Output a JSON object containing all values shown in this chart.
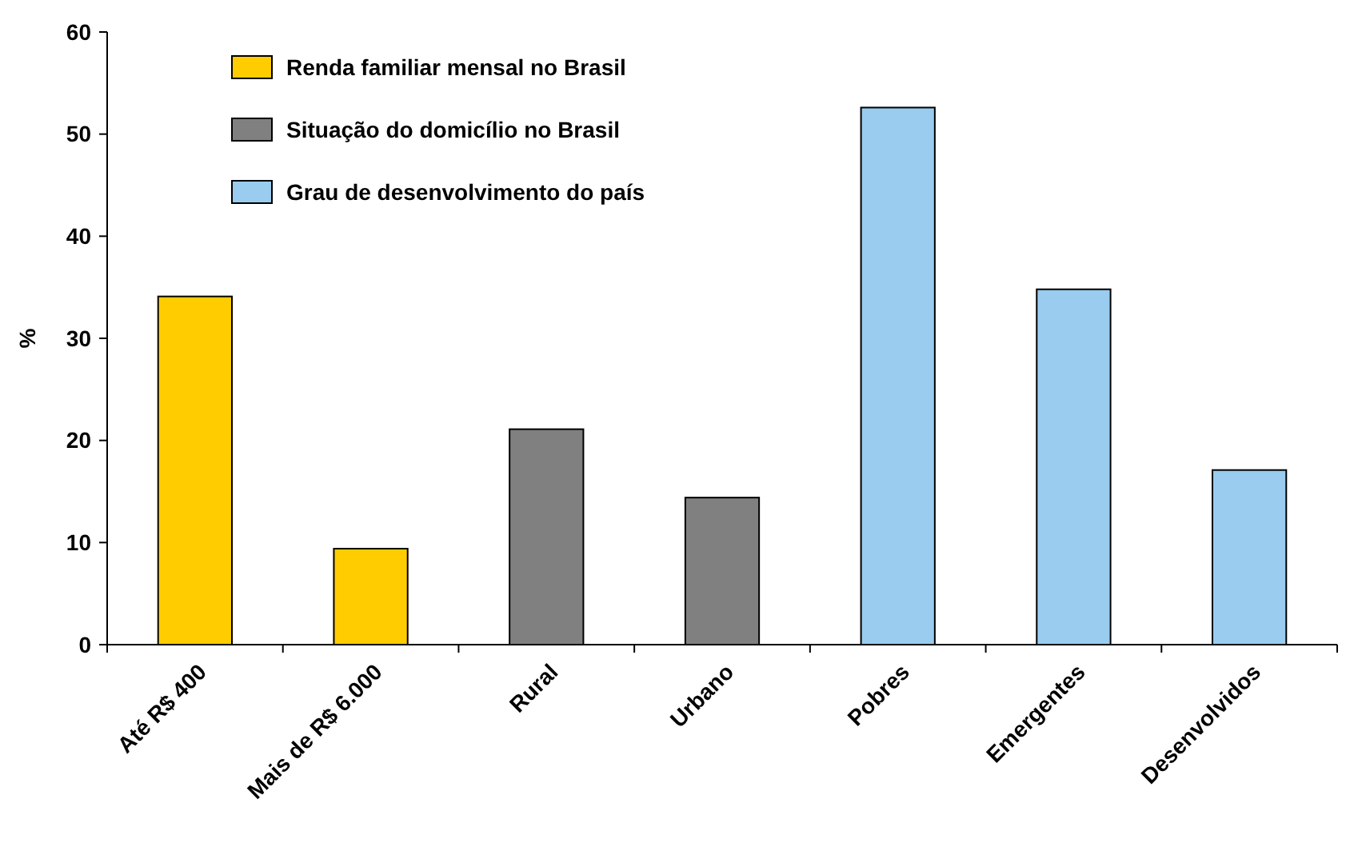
{
  "chart_data": {
    "type": "bar",
    "ylabel": "%",
    "categories": [
      "Até R$ 400",
      "Mais de R$ 6.000",
      "Rural",
      "Urbano",
      "Pobres",
      "Emergentes",
      "Desenvolvidos"
    ],
    "series": [
      {
        "name": "Renda familiar mensal no Brasil",
        "color": "#ffcc00",
        "values": [
          34.1,
          9.4,
          null,
          null,
          null,
          null,
          null
        ]
      },
      {
        "name": "Situação do domicílio no Brasil",
        "color": "#808080",
        "values": [
          null,
          null,
          21.1,
          14.4,
          null,
          null,
          null
        ]
      },
      {
        "name": "Grau de desenvolvimento do país",
        "color": "#99ccee",
        "values": [
          null,
          null,
          null,
          null,
          52.6,
          34.8,
          17.1
        ]
      }
    ],
    "stacked": true,
    "ylim": [
      0,
      60
    ],
    "yticks": [
      0,
      10,
      20,
      30,
      40,
      50,
      60
    ],
    "grid": false,
    "legend": "top left"
  }
}
